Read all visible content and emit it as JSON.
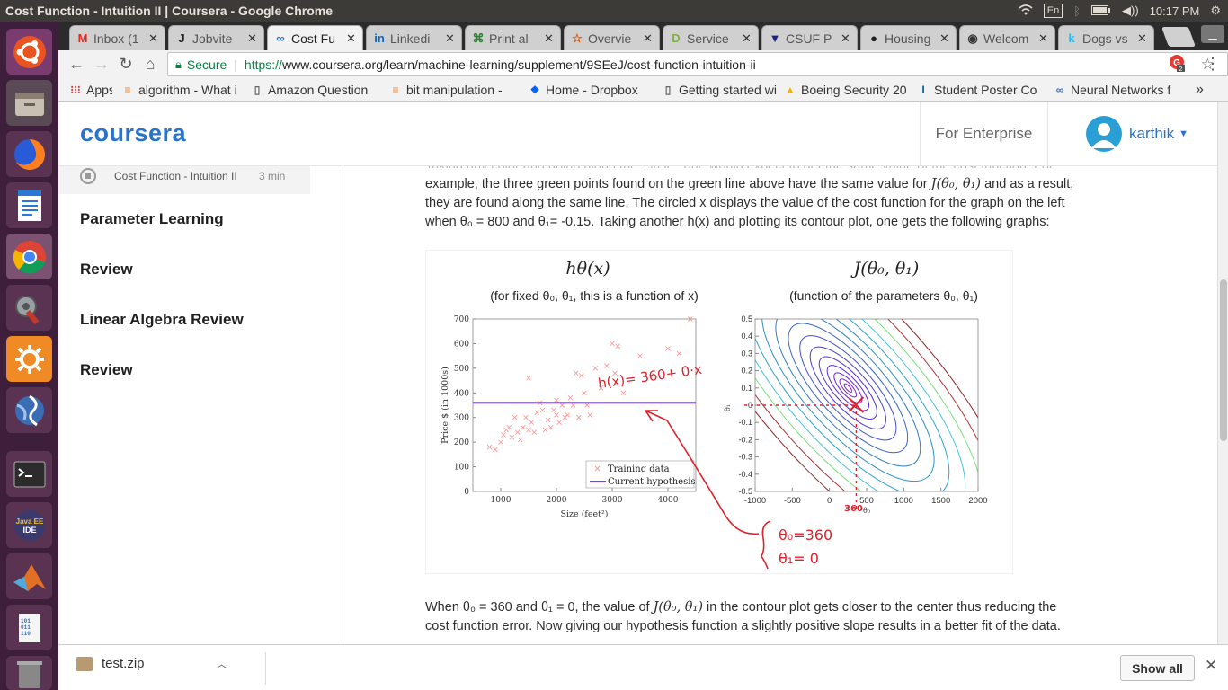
{
  "window": {
    "title": "Cost Function - Intuition II | Coursera - Google Chrome",
    "keyboard": "En",
    "time": "10:17 PM"
  },
  "tabs": [
    {
      "label": "Inbox (1",
      "icon": "gmail-icon",
      "glyph": "M",
      "color": "#d93025"
    },
    {
      "label": "Jobvite",
      "icon": "jobvite-icon",
      "glyph": "J",
      "color": "#222"
    },
    {
      "label": "Cost Fu",
      "icon": "coursera-icon",
      "glyph": "∞",
      "color": "#2a73cc"
    },
    {
      "label": "Linkedi",
      "icon": "linkedin-icon",
      "glyph": "in",
      "color": "#0a66c2"
    },
    {
      "label": "Print al",
      "icon": "print-icon",
      "glyph": "⌘",
      "color": "#2e7d32"
    },
    {
      "label": "Overvie",
      "icon": "star-icon",
      "glyph": "☆",
      "color": "#e65100"
    },
    {
      "label": "Service",
      "icon": "service-icon",
      "glyph": "D",
      "color": "#7cb342"
    },
    {
      "label": "CSUF P",
      "icon": "csuf-icon",
      "glyph": "▼",
      "color": "#1a237e"
    },
    {
      "label": "Housing",
      "icon": "github-icon",
      "glyph": "●",
      "color": "#222"
    },
    {
      "label": "Welcom",
      "icon": "welcome-icon",
      "glyph": "◉",
      "color": "#333"
    },
    {
      "label": "Dogs vs",
      "icon": "kaggle-icon",
      "glyph": "k",
      "color": "#20beff"
    }
  ],
  "address": {
    "secure_label": "Secure",
    "scheme": "https://",
    "url": "www.coursera.org/learn/machine-learning/supplement/9SEeJ/cost-function-intuition-ii"
  },
  "bookmarks": [
    {
      "label": "Apps",
      "icon": "apps-icon",
      "glyph": "⁝⁝⁝",
      "color": "#c44"
    },
    {
      "label": "algorithm - What i",
      "icon": "stackoverflow-icon",
      "glyph": "≡",
      "color": "#f48024"
    },
    {
      "label": "Amazon Question",
      "icon": "page-icon",
      "glyph": "▯",
      "color": "#666"
    },
    {
      "label": "bit manipulation -",
      "icon": "stackoverflow-icon",
      "glyph": "≡",
      "color": "#f48024"
    },
    {
      "label": "Home - Dropbox",
      "icon": "dropbox-icon",
      "glyph": "❖",
      "color": "#0061ff"
    },
    {
      "label": "Getting started wi",
      "icon": "page-icon",
      "glyph": "▯",
      "color": "#666"
    },
    {
      "label": "Boeing Security 20",
      "icon": "drive-icon",
      "glyph": "▲",
      "color": "#f4b400"
    },
    {
      "label": "Student Poster Co",
      "icon": "ieee-icon",
      "glyph": "I",
      "color": "#00629b"
    },
    {
      "label": "Neural Networks f",
      "icon": "coursera-icon",
      "glyph": "∞",
      "color": "#2a73cc"
    }
  ],
  "bookmarks_overflow": "»",
  "header": {
    "logo": "coursera",
    "enterprise": "For Enterprise",
    "username": "karthik"
  },
  "sidebar": {
    "current_item": "Cost Function - Intuition II",
    "current_duration": "3 min",
    "items": [
      "Parameter Learning",
      "Review",
      "Linear Algebra Review",
      "Review"
    ]
  },
  "content": {
    "line_cut": "Taking any color and going along the 'circle', one would expect to get the same value of the cost function. For",
    "para1_a": "example, the three green points found on the green line above have the same value for ",
    "para1_j": "J(θ₀, θ₁)",
    "para1_b": " and as a result,",
    "para1_line2": "they are found along the same line. The circled x displays the value of the cost function for the graph on the left",
    "para1_line3": "when θ₀ = 800 and θ₁= -0.15. Taking another h(x) and plotting its contour plot, one gets the following graphs:",
    "para2_a": "When θ₀ = 360 and θ₁ = 0, the value of ",
    "para2_j": "J(θ₀, θ₁)",
    "para2_b": " in the contour plot gets closer to the center thus reducing the",
    "para2_line2": "cost function error. Now giving our hypothesis function a slightly positive slope results in a better fit of the data."
  },
  "figure": {
    "left_title": "hθ(x)",
    "left_subtitle": "(for fixed θ₀, θ₁, this is a function of x)",
    "right_title": "J(θ₀, θ₁)",
    "right_subtitle": "(function of the parameters θ₀, θ₁)",
    "handwriting_hx": "h(x)= 360+ 0·x",
    "handwriting_t0": "θ₀=360",
    "handwriting_t1": "θ₁= 0",
    "handwriting_360": "360"
  },
  "chart_data": [
    {
      "type": "scatter",
      "xlabel": "Size (feet²)",
      "ylabel": "Price $ (in 1000s)",
      "xlim": [
        500,
        4500
      ],
      "ylim": [
        0,
        700
      ],
      "xticks": [
        1000,
        2000,
        3000,
        4000
      ],
      "yticks": [
        0,
        100,
        200,
        300,
        400,
        500,
        600,
        700
      ],
      "series": [
        {
          "name": "Training data",
          "color": "#ff9999",
          "marker": "x",
          "points": [
            [
              800,
              180
            ],
            [
              900,
              170
            ],
            [
              1000,
              200
            ],
            [
              1050,
              230
            ],
            [
              1100,
              250
            ],
            [
              1150,
              260
            ],
            [
              1200,
              220
            ],
            [
              1250,
              300
            ],
            [
              1300,
              240
            ],
            [
              1350,
              210
            ],
            [
              1400,
              260
            ],
            [
              1450,
              300
            ],
            [
              1500,
              250
            ],
            [
              1500,
              460
            ],
            [
              1550,
              280
            ],
            [
              1600,
              240
            ],
            [
              1650,
              320
            ],
            [
              1700,
              360
            ],
            [
              1750,
              330
            ],
            [
              1800,
              250
            ],
            [
              1850,
              290
            ],
            [
              1900,
              260
            ],
            [
              1950,
              330
            ],
            [
              2000,
              310
            ],
            [
              2000,
              370
            ],
            [
              2050,
              280
            ],
            [
              2100,
              350
            ],
            [
              2150,
              300
            ],
            [
              2200,
              310
            ],
            [
              2250,
              380
            ],
            [
              2300,
              350
            ],
            [
              2350,
              480
            ],
            [
              2400,
              300
            ],
            [
              2450,
              470
            ],
            [
              2500,
              400
            ],
            [
              2550,
              350
            ],
            [
              2600,
              310
            ],
            [
              2700,
              500
            ],
            [
              2800,
              420
            ],
            [
              2900,
              510
            ],
            [
              3000,
              600
            ],
            [
              3050,
              480
            ],
            [
              3100,
              590
            ],
            [
              3200,
              400
            ],
            [
              3500,
              550
            ],
            [
              4000,
              580
            ],
            [
              4200,
              560
            ],
            [
              4400,
              700
            ]
          ]
        },
        {
          "name": "Current hypothesis",
          "color": "#7a3cff",
          "type": "line",
          "points": [
            [
              500,
              360
            ],
            [
              4500,
              360
            ]
          ]
        }
      ],
      "legend": "bottom-right"
    },
    {
      "type": "contour",
      "xlabel": "θ₀",
      "ylabel": "θ₁",
      "xlim": [
        -1000,
        2000
      ],
      "ylim": [
        -0.5,
        0.5
      ],
      "xticks": [
        -1000,
        -500,
        0,
        500,
        1000,
        1500,
        2000
      ],
      "yticks": [
        0.5,
        0.4,
        0.3,
        0.2,
        0.1,
        0,
        -0.1,
        -0.2,
        -0.3,
        -0.4,
        -0.5
      ],
      "center": [
        250,
        0.1
      ],
      "marked_point": [
        360,
        0
      ]
    }
  ],
  "downloads": {
    "file": "test.zip",
    "show_all": "Show all"
  }
}
